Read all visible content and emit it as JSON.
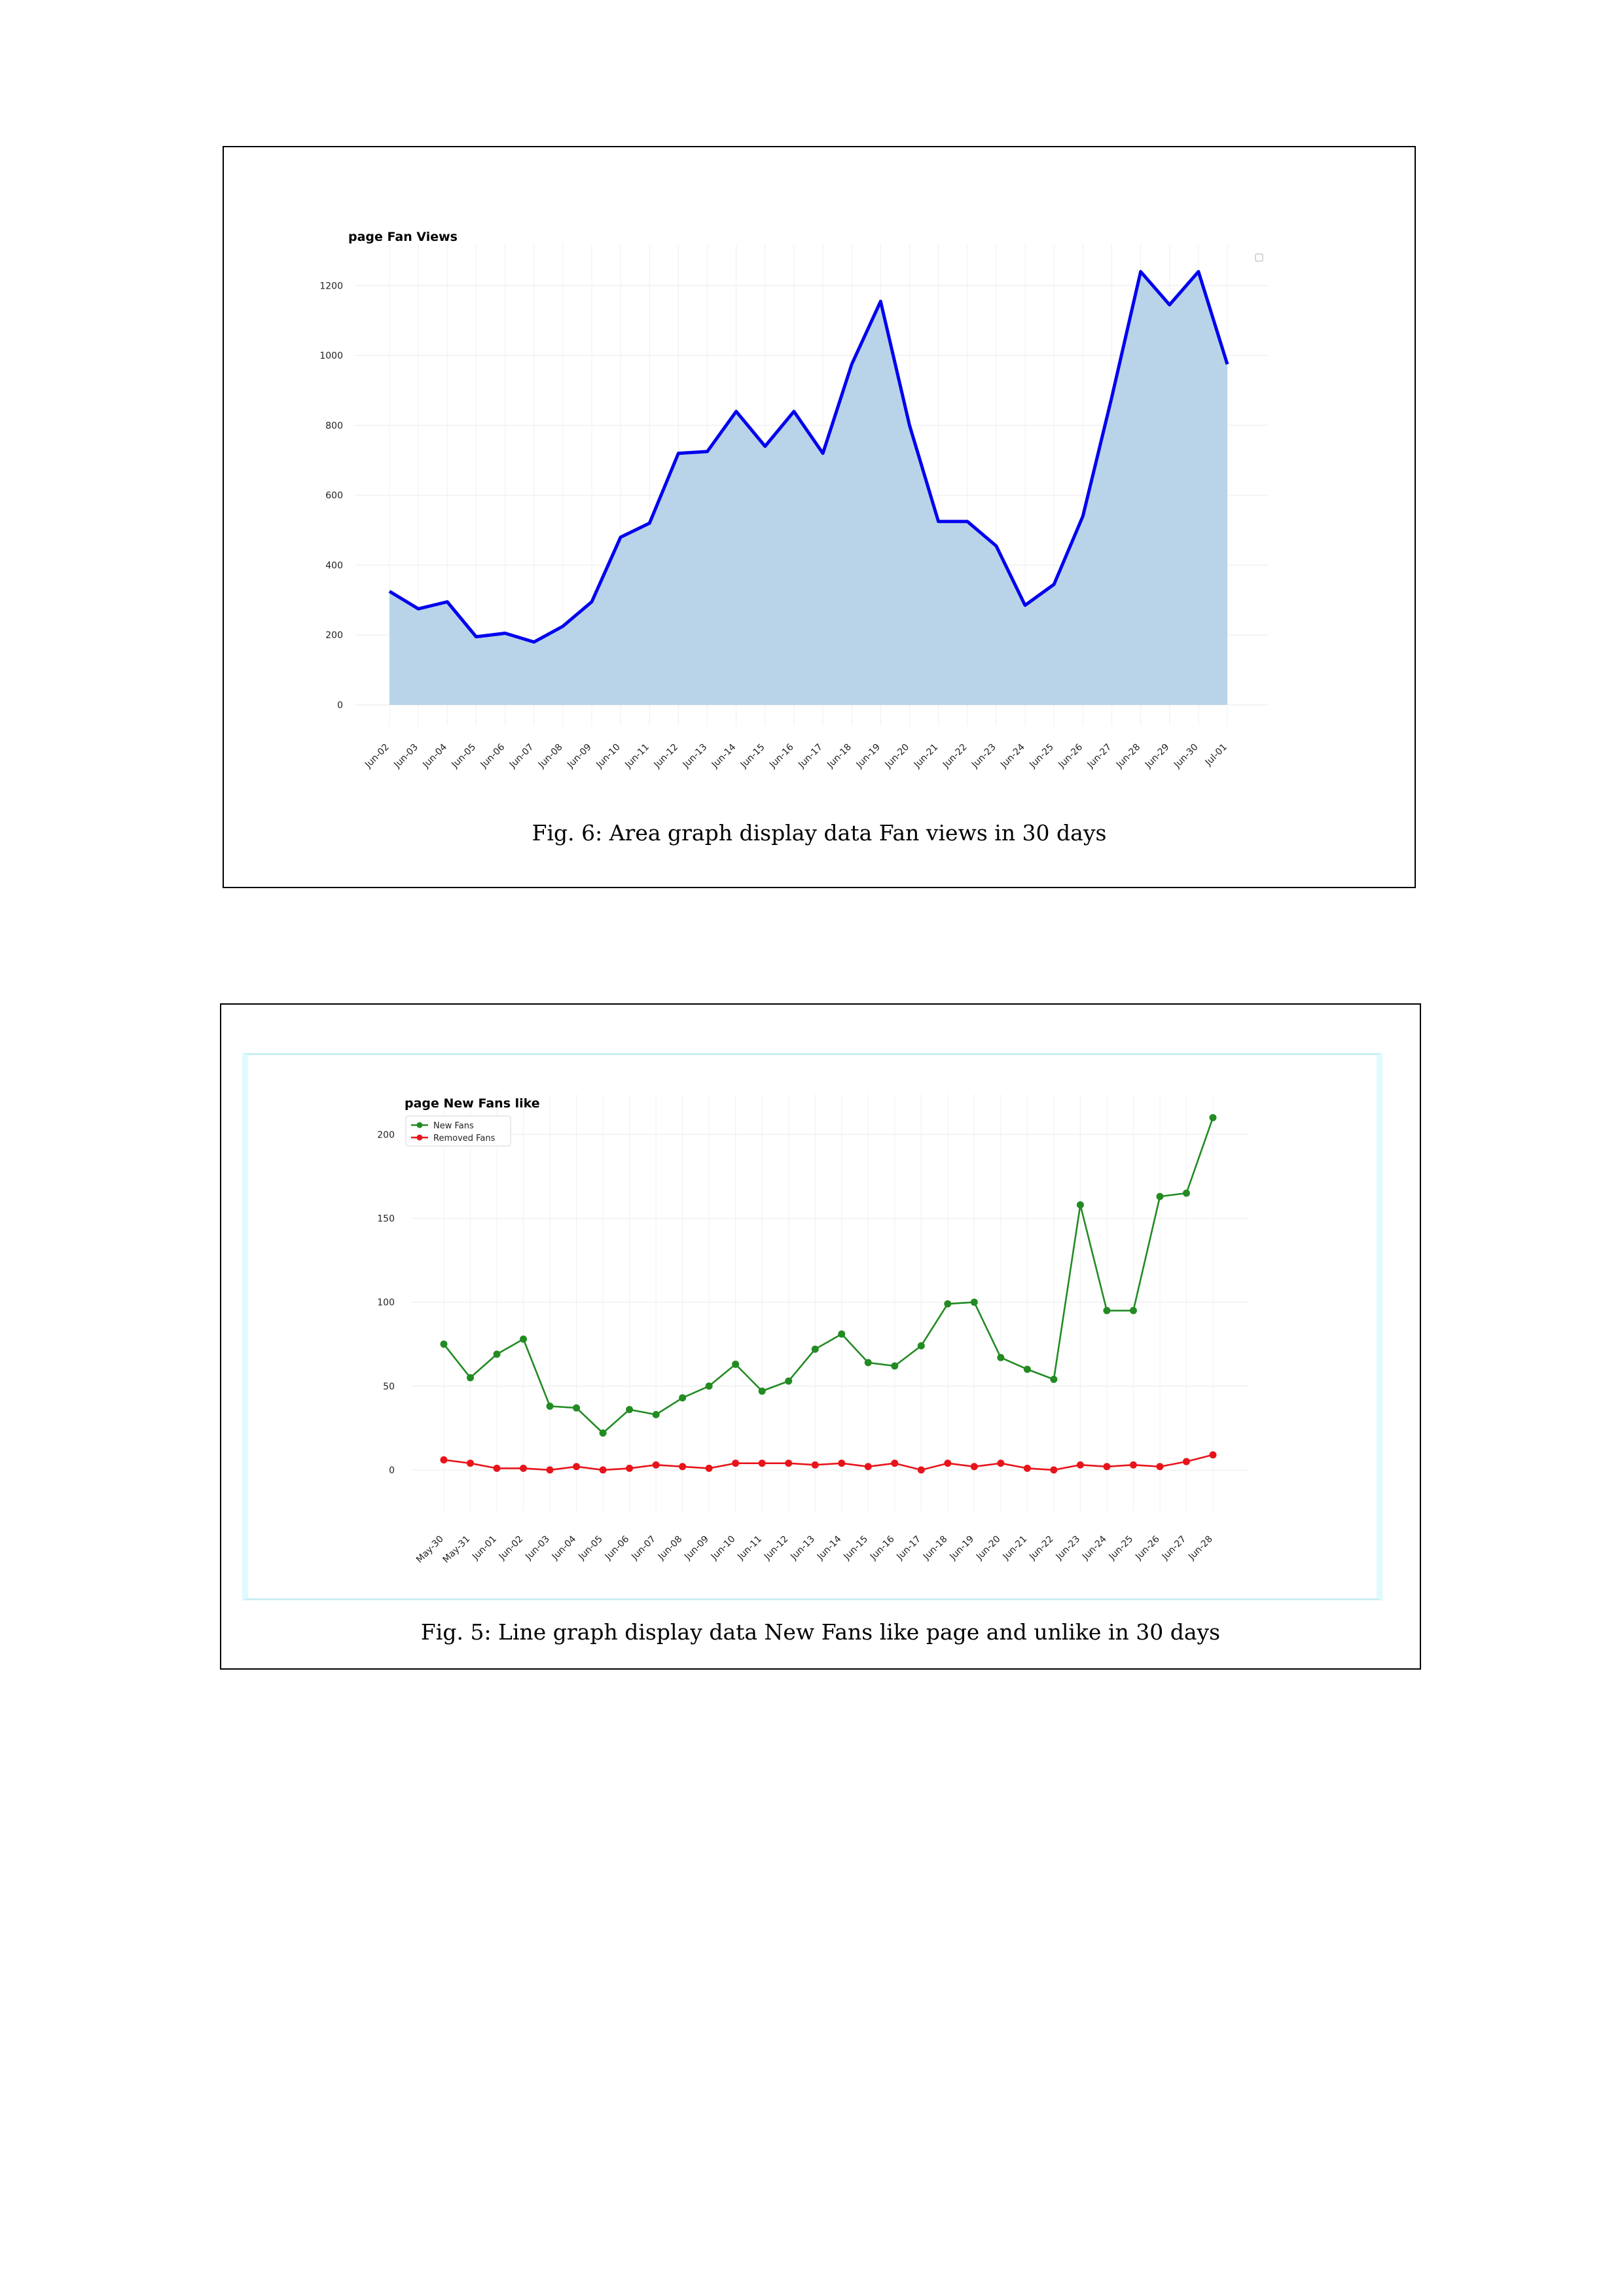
{
  "figures": [
    {
      "caption": "Fig. 6: Area graph display data Fan views in 30 days",
      "chart_data": {
        "type": "area",
        "title": "page Fan Views",
        "xlabel": "",
        "ylabel": "",
        "categories": [
          "Jun-02",
          "Jun-03",
          "Jun-04",
          "Jun-05",
          "Jun-06",
          "Jun-07",
          "Jun-08",
          "Jun-09",
          "Jun-10",
          "Jun-11",
          "Jun-12",
          "Jun-13",
          "Jun-14",
          "Jun-15",
          "Jun-16",
          "Jun-17",
          "Jun-18",
          "Jun-19",
          "Jun-20",
          "Jun-21",
          "Jun-22",
          "Jun-23",
          "Jun-24",
          "Jun-25",
          "Jun-26",
          "Jun-27",
          "Jun-28",
          "Jun-29",
          "Jun-30",
          "Jul-01"
        ],
        "series": [
          {
            "values": [
              325,
              275,
              295,
              195,
              205,
              180,
              225,
              295,
              480,
              520,
              720,
              725,
              840,
              740,
              840,
              720,
              975,
              1155,
              800,
              525,
              525,
              455,
              285,
              345,
              540,
              880,
              1240,
              1145,
              1240,
              975
            ],
            "line_color": "#0000ee",
            "fill_color": "#b9d4e9"
          }
        ],
        "yticks": [
          0,
          200,
          400,
          600,
          800,
          1000,
          1200
        ],
        "ylim": [
          -60,
          1300
        ],
        "grid": true,
        "legend": "top-right (empty marker)"
      }
    },
    {
      "caption": "Fig. 5: Line graph display data New Fans like page and unlike in 30 days",
      "chart_data": {
        "type": "line",
        "title": "page New Fans like",
        "xlabel": "",
        "ylabel": "",
        "categories": [
          "May-30",
          "May-31",
          "Jun-01",
          "Jun-02",
          "Jun-03",
          "Jun-04",
          "Jun-05",
          "Jun-06",
          "Jun-07",
          "Jun-08",
          "Jun-09",
          "Jun-10",
          "Jun-11",
          "Jun-12",
          "Jun-13",
          "Jun-14",
          "Jun-15",
          "Jun-16",
          "Jun-17",
          "Jun-18",
          "Jun-19",
          "Jun-20",
          "Jun-21",
          "Jun-22",
          "Jun-23",
          "Jun-24",
          "Jun-25",
          "Jun-26",
          "Jun-27",
          "Jun-28"
        ],
        "series": [
          {
            "name": "New Fans",
            "color": "#228b22",
            "values": [
              75,
              55,
              69,
              78,
              38,
              37,
              22,
              36,
              33,
              43,
              50,
              63,
              47,
              53,
              72,
              81,
              64,
              62,
              74,
              99,
              100,
              67,
              60,
              54,
              158,
              95,
              95,
              163,
              165,
              210
            ]
          },
          {
            "name": "Removed Fans",
            "color": "#e8141a",
            "values": [
              6,
              4,
              1,
              1,
              0,
              2,
              0,
              1,
              3,
              2,
              1,
              4,
              4,
              4,
              3,
              4,
              2,
              4,
              0,
              4,
              2,
              4,
              1,
              0,
              3,
              2,
              3,
              2,
              5,
              9
            ]
          }
        ],
        "yticks": [
          0,
          50,
          100,
          150,
          200
        ],
        "ylim": [
          -25,
          220
        ],
        "grid": true,
        "legend": "top-left"
      }
    }
  ]
}
